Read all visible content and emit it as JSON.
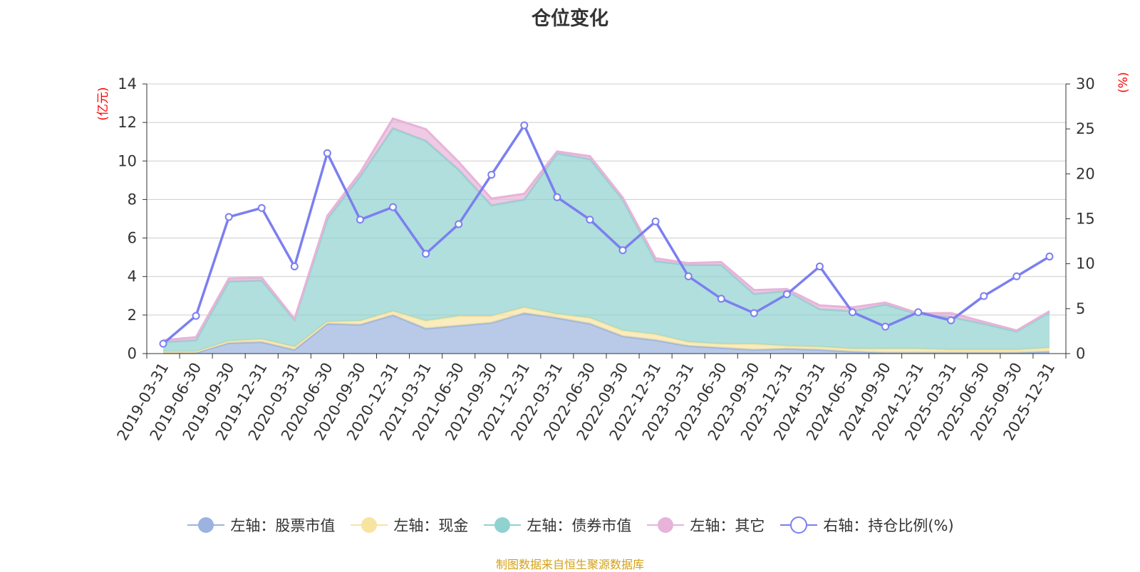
{
  "chart_data": {
    "type": "area",
    "title": "仓位变化",
    "categories": [
      "2019-03-31",
      "2019-06-30",
      "2019-09-30",
      "2019-12-31",
      "2020-03-31",
      "2020-06-30",
      "2020-09-30",
      "2020-12-31",
      "2021-03-31",
      "2021-06-30",
      "2021-09-30",
      "2021-12-31",
      "2022-03-31",
      "2022-06-30",
      "2022-09-30",
      "2022-12-31",
      "2023-03-31",
      "2023-06-30",
      "2023-09-30",
      "2023-12-31",
      "2024-03-31",
      "2024-06-30",
      "2024-09-30",
      "2024-12-31",
      "2025-03-31",
      "2025-06-30",
      "2025-09-30",
      "2025-12-31"
    ],
    "left_axis": {
      "label": "(亿元)",
      "ylim": [
        0,
        14
      ],
      "ticks": [
        0,
        2,
        4,
        6,
        8,
        10,
        12,
        14
      ],
      "color": "#ff0000"
    },
    "right_axis": {
      "label": "(%)",
      "ylim": [
        0,
        30
      ],
      "ticks": [
        0,
        5,
        10,
        15,
        20,
        25,
        30
      ],
      "color": "#ff0000"
    },
    "series": [
      {
        "name": "左轴：股票市值",
        "axis": "left",
        "stack": true,
        "color": "#9bb3de",
        "values": [
          0.05,
          0.05,
          0.55,
          0.6,
          0.2,
          1.55,
          1.5,
          2.0,
          1.3,
          1.45,
          1.6,
          2.1,
          1.85,
          1.55,
          0.9,
          0.7,
          0.4,
          0.3,
          0.2,
          0.25,
          0.2,
          0.1,
          0.05,
          0.05,
          0.05,
          0.05,
          0.05,
          0.1
        ]
      },
      {
        "name": "左轴：现金",
        "axis": "left",
        "stack": true,
        "color": "#f8e4a1",
        "values": [
          0.05,
          0.05,
          0.1,
          0.15,
          0.15,
          0.1,
          0.2,
          0.2,
          0.4,
          0.5,
          0.35,
          0.3,
          0.2,
          0.3,
          0.3,
          0.3,
          0.2,
          0.2,
          0.3,
          0.15,
          0.15,
          0.15,
          0.2,
          0.2,
          0.15,
          0.15,
          0.15,
          0.2
        ]
      },
      {
        "name": "左轴：债券市值",
        "axis": "left",
        "stack": true,
        "color": "#8fd2cf",
        "values": [
          0.5,
          0.6,
          3.1,
          3.05,
          1.4,
          5.35,
          7.5,
          9.5,
          9.35,
          7.6,
          5.75,
          5.6,
          8.35,
          8.25,
          6.8,
          3.8,
          4.0,
          4.1,
          2.6,
          2.85,
          1.95,
          1.95,
          2.3,
          1.8,
          1.7,
          1.35,
          0.95,
          1.85
        ]
      },
      {
        "name": "左轴：其它",
        "axis": "left",
        "stack": true,
        "color": "#e7b3d9",
        "values": [
          0.1,
          0.15,
          0.15,
          0.15,
          0.05,
          0.15,
          0.2,
          0.5,
          0.6,
          0.4,
          0.35,
          0.3,
          0.1,
          0.15,
          0.1,
          0.15,
          0.1,
          0.15,
          0.2,
          0.1,
          0.2,
          0.2,
          0.1,
          0.05,
          0.2,
          0.1,
          0.05,
          0.05
        ]
      },
      {
        "name": "右轴：持仓比例(%)",
        "axis": "right",
        "stack": false,
        "color": "#7b7ff0",
        "values": [
          1.1,
          4.2,
          15.2,
          16.2,
          9.7,
          22.3,
          14.9,
          16.3,
          11.1,
          14.4,
          19.9,
          25.4,
          17.4,
          14.9,
          11.5,
          14.7,
          8.6,
          6.1,
          4.5,
          6.6,
          9.7,
          4.6,
          3.0,
          4.6,
          3.7,
          6.4,
          8.6,
          10.8
        ]
      }
    ]
  },
  "source_note": "制图数据来自恒生聚源数据库"
}
